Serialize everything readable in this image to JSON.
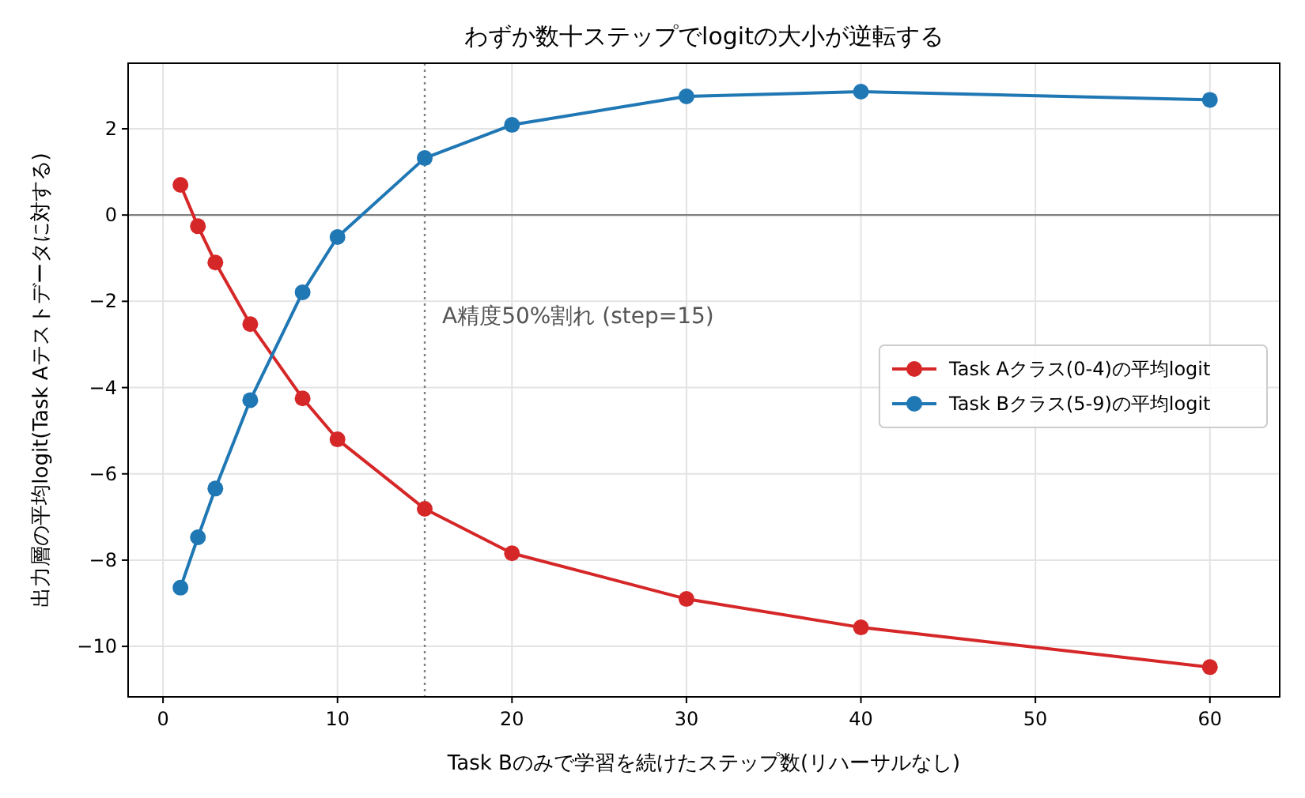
{
  "chart_data": {
    "type": "line",
    "title": "わずか数十ステップでlogitの大小が逆転する",
    "xlabel": "Task Bのみで学習を続けたステップ数(リハーサルなし)",
    "ylabel": "出力層の平均logit(Task Aテストデータに対する)",
    "x": [
      1,
      2,
      3,
      5,
      8,
      10,
      15,
      20,
      30,
      40,
      60
    ],
    "series": [
      {
        "name": "Task Aクラス(0-4)の平均logit",
        "color": "#d62728",
        "values": [
          0.7,
          -0.26,
          -1.1,
          -2.53,
          -4.25,
          -5.2,
          -6.81,
          -7.84,
          -8.9,
          -9.56,
          -10.48
        ]
      },
      {
        "name": "Task Bクラス(5-9)の平均logit",
        "color": "#1f77b4",
        "values": [
          -8.64,
          -7.47,
          -6.34,
          -4.29,
          -1.79,
          -0.51,
          1.32,
          2.09,
          2.75,
          2.86,
          2.67
        ]
      }
    ],
    "xlim": [
      -2,
      64
    ],
    "xticks": [
      0,
      10,
      20,
      30,
      40,
      50,
      60
    ],
    "ylim": [
      -11.17,
      3.52
    ],
    "yticks": [
      -10,
      -8,
      -6,
      -4,
      -2,
      0,
      2
    ],
    "ref_lines": [
      {
        "axis": "y",
        "value": 0,
        "color": "#808080",
        "line_style": "solid"
      },
      {
        "axis": "x",
        "value": 15,
        "label": "A精度50%割れ (step=15)",
        "color": "#808080",
        "line_style": "dotted"
      }
    ],
    "grid": true,
    "legend": "right",
    "marker": "circle",
    "line_style": "solid"
  }
}
